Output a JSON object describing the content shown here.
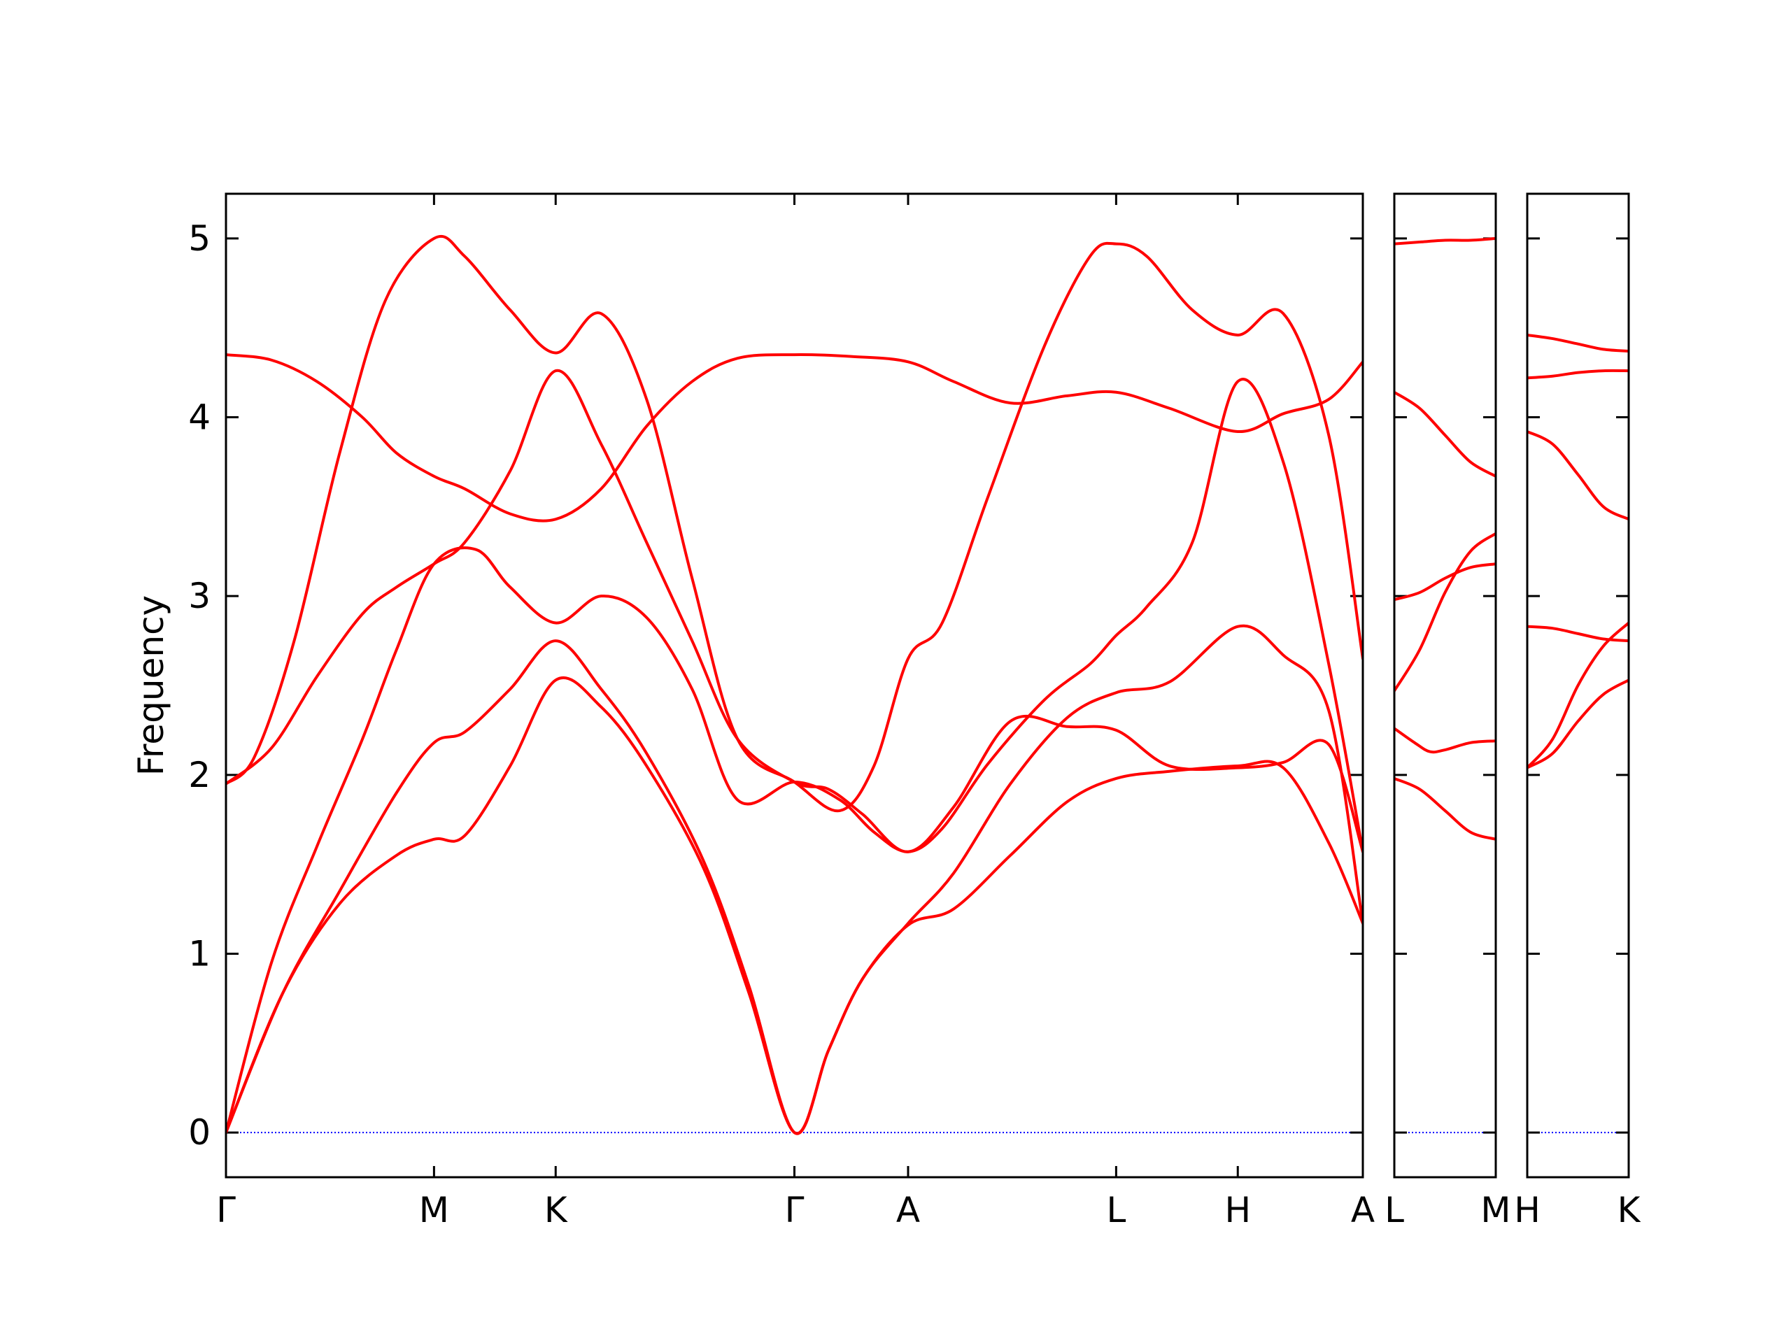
{
  "chart_data": {
    "type": "line",
    "title": "",
    "ylabel": "Frequency",
    "xlabel": "",
    "ylim": [
      -0.25,
      5.25
    ],
    "yticks": [
      0,
      1,
      2,
      3,
      4,
      5
    ],
    "grid": false,
    "colors": {
      "band": "#ff0000",
      "zero_line": "#0000ff",
      "frame": "#000000"
    },
    "panels": [
      {
        "name": "main",
        "xlim": [
          0,
          10
        ],
        "labels": [
          {
            "x": 0,
            "text": "Γ"
          },
          {
            "x": 1.83,
            "text": "M"
          },
          {
            "x": 2.9,
            "text": "K"
          },
          {
            "x": 5.0,
            "text": "Γ"
          },
          {
            "x": 6.0,
            "text": "A"
          },
          {
            "x": 7.83,
            "text": "L"
          },
          {
            "x": 8.9,
            "text": "H"
          },
          {
            "x": 10.0,
            "text": "A"
          }
        ],
        "series": [
          {
            "x": [
              0,
              0.5,
              1,
              1.5,
              1.83,
              2.1,
              2.5,
              2.9,
              3.3,
              3.7,
              4.2,
              4.6,
              5.0,
              5.3,
              5.6,
              6.0,
              6.4,
              6.9,
              7.4,
              7.83,
              8.3,
              8.9,
              9.3,
              9.7,
              10
            ],
            "y": [
              0,
              0.78,
              1.28,
              1.55,
              1.64,
              1.66,
              2.05,
              2.53,
              2.38,
              2.05,
              1.48,
              0.78,
              0,
              0.46,
              0.86,
              1.16,
              1.25,
              1.55,
              1.85,
              1.98,
              2.02,
              2.05,
              2.04,
              1.62,
              1.17
            ]
          },
          {
            "x": [
              0,
              0.5,
              1,
              1.5,
              1.83,
              2.1,
              2.5,
              2.9,
              3.3,
              3.7,
              4.2,
              4.6,
              5.0,
              5.3,
              5.6,
              6.0,
              6.4,
              6.9,
              7.4,
              7.83,
              8.3,
              8.9,
              9.3,
              9.7,
              10
            ],
            "y": [
              0,
              0.78,
              1.35,
              1.9,
              2.18,
              2.24,
              2.48,
              2.75,
              2.48,
              2.12,
              1.52,
              0.82,
              0,
              0.46,
              0.86,
              1.17,
              1.45,
              1.95,
              2.32,
              2.46,
              2.52,
              2.83,
              2.67,
              2.36,
              1.17
            ]
          },
          {
            "x": [
              0,
              0.4,
              0.8,
              1.2,
              1.5,
              1.83,
              2.2,
              2.5,
              2.9,
              3.3,
              3.7,
              4.1,
              4.5,
              5.0,
              5.4,
              5.7,
              6.0,
              6.3,
              6.7,
              7.2,
              7.6,
              7.83,
              8.1,
              8.5,
              8.9,
              9.3,
              9.7,
              10
            ],
            "y": [
              0,
              0.95,
              1.6,
              2.2,
              2.7,
              3.18,
              3.26,
              3.05,
              2.85,
              3.0,
              2.88,
              2.48,
              1.86,
              1.96,
              1.86,
              1.68,
              1.57,
              1.7,
              2.06,
              2.42,
              2.62,
              2.78,
              2.94,
              3.3,
              4.2,
              3.75,
              2.62,
              1.57
            ]
          },
          {
            "x": [
              0,
              0.4,
              0.8,
              1.2,
              1.5,
              1.83,
              2.1,
              2.5,
              2.9,
              3.3,
              3.7,
              4.1,
              4.5,
              5.0,
              5.3,
              5.6,
              6.0,
              6.4,
              6.9,
              7.4,
              7.83,
              8.3,
              8.9,
              9.3,
              9.7,
              10
            ],
            "y": [
              1.95,
              2.15,
              2.55,
              2.9,
              3.05,
              3.18,
              3.3,
              3.7,
              4.26,
              3.85,
              3.3,
              2.75,
              2.2,
              1.96,
              1.92,
              1.78,
              1.57,
              1.82,
              2.3,
              2.27,
              2.25,
              2.05,
              2.04,
              2.07,
              2.17,
              1.57
            ]
          },
          {
            "x": [
              0,
              0.25,
              0.6,
              1.0,
              1.4,
              1.83,
              2.1,
              2.5,
              2.9,
              3.3,
              3.7,
              4.1,
              4.5,
              5.0,
              5.4,
              5.7,
              6.0,
              6.3,
              6.7,
              7.2,
              7.6,
              7.83,
              8.1,
              8.5,
              8.9,
              9.3,
              9.7,
              10
            ],
            "y": [
              1.95,
              2.1,
              2.75,
              3.8,
              4.65,
              5.0,
              4.9,
              4.6,
              4.36,
              4.58,
              4.1,
              3.1,
              2.2,
              1.96,
              1.8,
              2.05,
              2.65,
              2.85,
              3.55,
              4.4,
              4.9,
              4.97,
              4.9,
              4.6,
              4.46,
              4.58,
              3.9,
              2.65
            ]
          },
          {
            "x": [
              0,
              0.4,
              0.8,
              1.2,
              1.5,
              1.83,
              2.1,
              2.5,
              2.9,
              3.3,
              3.7,
              4.1,
              4.5,
              5.0,
              5.5,
              6.0,
              6.4,
              6.9,
              7.4,
              7.83,
              8.3,
              8.9,
              9.3,
              9.7,
              10
            ],
            "y": [
              4.35,
              4.32,
              4.2,
              4.0,
              3.8,
              3.67,
              3.6,
              3.46,
              3.43,
              3.6,
              3.95,
              4.2,
              4.33,
              4.35,
              4.34,
              4.31,
              4.2,
              4.08,
              4.12,
              4.14,
              4.05,
              3.92,
              4.02,
              4.1,
              4.31
            ]
          }
        ]
      },
      {
        "name": "L-M",
        "xlim": [
          0,
          1
        ],
        "labels": [
          {
            "x": 0,
            "text": "L"
          },
          {
            "x": 1,
            "text": "M"
          }
        ],
        "series": [
          {
            "x": [
              0,
              0.25,
              0.5,
              0.75,
              1
            ],
            "y": [
              1.98,
              1.92,
              1.8,
              1.68,
              1.64
            ]
          },
          {
            "x": [
              0,
              0.2,
              0.35,
              0.5,
              0.75,
              1
            ],
            "y": [
              2.26,
              2.18,
              2.13,
              2.14,
              2.18,
              2.19
            ]
          },
          {
            "x": [
              0,
              0.25,
              0.5,
              0.75,
              1
            ],
            "y": [
              2.47,
              2.7,
              3.02,
              3.25,
              3.35
            ]
          },
          {
            "x": [
              0,
              0.25,
              0.5,
              0.75,
              1
            ],
            "y": [
              2.98,
              3.02,
              3.1,
              3.16,
              3.18
            ]
          },
          {
            "x": [
              0,
              0.25,
              0.5,
              0.75,
              1
            ],
            "y": [
              4.14,
              4.05,
              3.9,
              3.75,
              3.67
            ]
          },
          {
            "x": [
              0,
              0.25,
              0.5,
              0.75,
              1
            ],
            "y": [
              4.97,
              4.98,
              4.99,
              4.99,
              5.0
            ]
          }
        ]
      },
      {
        "name": "H-K",
        "xlim": [
          0,
          1
        ],
        "labels": [
          {
            "x": 0,
            "text": "H"
          },
          {
            "x": 1,
            "text": "K"
          }
        ],
        "series": [
          {
            "x": [
              0,
              0.25,
              0.5,
              0.75,
              1
            ],
            "y": [
              2.04,
              2.12,
              2.3,
              2.45,
              2.53
            ]
          },
          {
            "x": [
              0,
              0.25,
              0.5,
              0.75,
              1
            ],
            "y": [
              2.04,
              2.2,
              2.5,
              2.72,
              2.85
            ]
          },
          {
            "x": [
              0,
              0.25,
              0.5,
              0.75,
              1
            ],
            "y": [
              2.83,
              2.82,
              2.79,
              2.76,
              2.75
            ]
          },
          {
            "x": [
              0,
              0.25,
              0.5,
              0.75,
              1
            ],
            "y": [
              3.92,
              3.85,
              3.68,
              3.5,
              3.43
            ]
          },
          {
            "x": [
              0,
              0.25,
              0.5,
              0.75,
              1
            ],
            "y": [
              4.22,
              4.23,
              4.25,
              4.26,
              4.26
            ]
          },
          {
            "x": [
              0,
              0.25,
              0.5,
              0.75,
              1
            ],
            "y": [
              4.46,
              4.44,
              4.41,
              4.38,
              4.37
            ]
          }
        ]
      }
    ]
  }
}
